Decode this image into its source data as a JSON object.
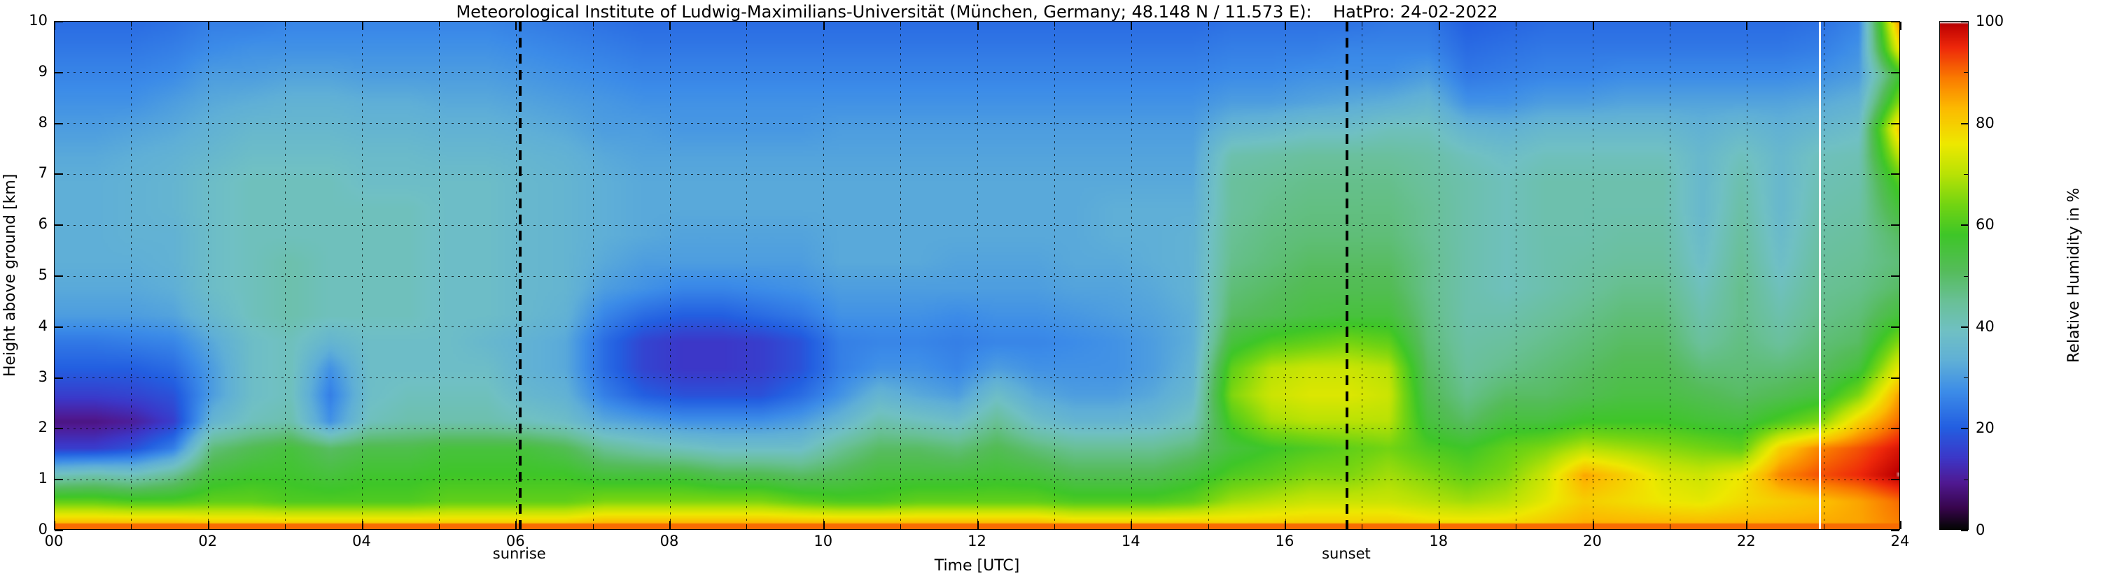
{
  "title": "Meteorological Institute of Ludwig-Maximilians-Universität (München, Germany; 48.148 N / 11.573 E):    HatPro: 24-02-2022",
  "axes": {
    "xlabel": "Time [UTC]",
    "ylabel": "Height above ground [km]",
    "colorbar_label": "Relative Humidity in %",
    "x_tick_labels": [
      "00",
      "02",
      "04",
      "06",
      "08",
      "10",
      "12",
      "14",
      "16",
      "18",
      "20",
      "22",
      "24"
    ],
    "x_tick_hours": [
      0,
      2,
      4,
      6,
      8,
      10,
      12,
      14,
      16,
      18,
      20,
      22,
      24
    ],
    "x_minor_tick_hours": [
      1,
      3,
      5,
      7,
      9,
      11,
      13,
      15,
      17,
      19,
      21,
      23
    ],
    "y_tick_labels": [
      "0",
      "1",
      "2",
      "3",
      "4",
      "5",
      "6",
      "7",
      "8",
      "9",
      "10"
    ],
    "y_tick_km": [
      0,
      1,
      2,
      3,
      4,
      5,
      6,
      7,
      8,
      9,
      10
    ],
    "x_range_h": [
      0,
      24
    ],
    "y_range_km": [
      0,
      10
    ],
    "grid_style": "dashed"
  },
  "colorbar": {
    "tick_labels": [
      "0",
      "20",
      "40",
      "60",
      "80",
      "100"
    ],
    "tick_values": [
      0,
      20,
      40,
      60,
      80,
      100
    ],
    "minor_tick_values": [
      10,
      30,
      50,
      70,
      90
    ],
    "range": [
      0,
      100
    ]
  },
  "annotations": {
    "sunrise": {
      "label": "sunrise",
      "time_utc_h": 6.05
    },
    "sunset": {
      "label": "sunset",
      "time_utc_h": 16.8
    },
    "missing_data_gap_utc_h": 22.95
  },
  "chart_data": {
    "type": "heatmap",
    "title": "HatPro relative humidity time-height cross-section, 24-02-2022",
    "xlabel": "Time [UTC]",
    "ylabel": "Height above ground [km]",
    "zlabel": "Relative Humidity in %",
    "x_range_h": [
      0,
      24
    ],
    "y_range_km": [
      0,
      10
    ],
    "z_range_percent": [
      0,
      100
    ],
    "time_step_h": 0.5,
    "time_bin_center_start_h": 0.25,
    "n_time_bins": 48,
    "height_step_km": 0.5,
    "height_bin_centers_km_bottom_up_start": 0.25,
    "n_height_bins": 20,
    "note": "Each array is one 30-min time column; 20 RH% values from 0 km (first) to 10 km (last). Estimated from the plot colors.",
    "rh_percent_columns_bottom_up": [
      [
        88,
        62,
        40,
        15,
        8,
        15,
        20,
        24,
        30,
        32,
        33,
        33,
        33,
        33,
        32,
        30,
        28,
        26,
        24,
        22
      ],
      [
        88,
        62,
        42,
        15,
        8,
        15,
        20,
        24,
        30,
        32,
        33,
        33,
        33,
        33,
        32,
        30,
        28,
        26,
        24,
        22
      ],
      [
        88,
        60,
        40,
        18,
        10,
        16,
        20,
        25,
        30,
        32,
        33,
        34,
        34,
        34,
        33,
        31,
        28,
        26,
        24,
        22
      ],
      [
        88,
        60,
        45,
        25,
        15,
        18,
        22,
        26,
        31,
        33,
        34,
        34,
        35,
        35,
        34,
        32,
        30,
        27,
        25,
        23
      ],
      [
        85,
        62,
        55,
        48,
        35,
        30,
        30,
        32,
        36,
        38,
        38,
        38,
        38,
        38,
        36,
        34,
        32,
        30,
        27,
        25
      ],
      [
        85,
        62,
        57,
        52,
        40,
        38,
        38,
        38,
        40,
        40,
        40,
        40,
        40,
        40,
        38,
        36,
        33,
        30,
        28,
        25
      ],
      [
        85,
        60,
        57,
        55,
        42,
        40,
        40,
        40,
        42,
        42,
        42,
        40,
        40,
        40,
        38,
        36,
        34,
        31,
        28,
        26
      ],
      [
        85,
        60,
        55,
        50,
        28,
        25,
        28,
        35,
        40,
        40,
        40,
        40,
        40,
        40,
        38,
        36,
        34,
        31,
        28,
        26
      ],
      [
        85,
        60,
        57,
        53,
        40,
        38,
        38,
        38,
        40,
        40,
        40,
        40,
        40,
        38,
        37,
        35,
        33,
        30,
        28,
        26
      ],
      [
        85,
        60,
        57,
        53,
        42,
        40,
        38,
        38,
        40,
        40,
        40,
        40,
        40,
        38,
        37,
        35,
        33,
        30,
        28,
        26
      ],
      [
        85,
        62,
        58,
        55,
        42,
        40,
        38,
        38,
        38,
        38,
        38,
        38,
        38,
        38,
        36,
        34,
        32,
        30,
        28,
        26
      ],
      [
        85,
        62,
        58,
        55,
        42,
        40,
        38,
        36,
        38,
        38,
        38,
        38,
        38,
        38,
        36,
        34,
        32,
        30,
        28,
        26
      ],
      [
        85,
        62,
        58,
        55,
        40,
        36,
        34,
        34,
        36,
        36,
        36,
        36,
        36,
        36,
        35,
        33,
        31,
        29,
        27,
        25
      ],
      [
        85,
        62,
        58,
        52,
        38,
        34,
        32,
        32,
        34,
        35,
        35,
        35,
        35,
        35,
        34,
        32,
        30,
        28,
        26,
        24
      ],
      [
        88,
        65,
        55,
        45,
        32,
        25,
        22,
        22,
        26,
        30,
        32,
        33,
        33,
        33,
        32,
        30,
        29,
        27,
        25,
        23
      ],
      [
        88,
        65,
        55,
        42,
        30,
        20,
        16,
        16,
        22,
        28,
        30,
        32,
        32,
        32,
        31,
        30,
        28,
        26,
        24,
        22
      ],
      [
        88,
        65,
        55,
        40,
        28,
        18,
        14,
        14,
        20,
        26,
        30,
        31,
        32,
        32,
        31,
        29,
        28,
        26,
        24,
        22
      ],
      [
        88,
        65,
        52,
        38,
        28,
        18,
        14,
        14,
        20,
        26,
        30,
        31,
        32,
        32,
        31,
        29,
        28,
        26,
        24,
        22
      ],
      [
        88,
        65,
        52,
        38,
        28,
        18,
        15,
        15,
        22,
        27,
        30,
        31,
        32,
        32,
        31,
        29,
        28,
        26,
        24,
        22
      ],
      [
        88,
        62,
        50,
        38,
        30,
        22,
        18,
        18,
        24,
        28,
        30,
        31,
        32,
        32,
        31,
        29,
        28,
        26,
        24,
        22
      ],
      [
        88,
        60,
        52,
        45,
        35,
        28,
        25,
        25,
        28,
        30,
        32,
        32,
        32,
        32,
        31,
        30,
        28,
        26,
        24,
        22
      ],
      [
        88,
        60,
        55,
        50,
        42,
        35,
        28,
        26,
        28,
        30,
        32,
        32,
        32,
        32,
        31,
        30,
        28,
        26,
        24,
        22
      ],
      [
        88,
        62,
        55,
        50,
        40,
        32,
        28,
        26,
        28,
        30,
        32,
        32,
        32,
        32,
        31,
        30,
        28,
        26,
        24,
        22
      ],
      [
        88,
        62,
        55,
        48,
        38,
        30,
        26,
        25,
        27,
        30,
        31,
        32,
        32,
        32,
        31,
        30,
        28,
        26,
        24,
        22
      ],
      [
        88,
        62,
        56,
        52,
        45,
        38,
        30,
        26,
        28,
        30,
        31,
        32,
        32,
        32,
        31,
        30,
        28,
        26,
        24,
        22
      ],
      [
        88,
        62,
        55,
        48,
        38,
        32,
        28,
        26,
        28,
        30,
        31,
        32,
        32,
        32,
        31,
        30,
        28,
        26,
        24,
        22
      ],
      [
        85,
        60,
        52,
        45,
        35,
        30,
        28,
        27,
        29,
        31,
        32,
        32,
        32,
        32,
        31,
        30,
        28,
        26,
        24,
        22
      ],
      [
        85,
        60,
        52,
        45,
        35,
        30,
        28,
        28,
        30,
        31,
        32,
        33,
        33,
        32,
        31,
        30,
        28,
        26,
        24,
        22
      ],
      [
        85,
        60,
        52,
        45,
        36,
        32,
        30,
        30,
        31,
        32,
        33,
        33,
        33,
        32,
        31,
        30,
        28,
        26,
        24,
        22
      ],
      [
        85,
        62,
        55,
        48,
        40,
        36,
        34,
        33,
        33,
        34,
        34,
        34,
        33,
        32,
        31,
        30,
        28,
        26,
        24,
        22
      ],
      [
        82,
        68,
        60,
        55,
        60,
        65,
        62,
        55,
        50,
        48,
        46,
        45,
        44,
        44,
        42,
        35,
        30,
        27,
        25,
        23
      ],
      [
        82,
        70,
        62,
        58,
        68,
        72,
        70,
        60,
        52,
        50,
        48,
        47,
        46,
        45,
        43,
        36,
        30,
        27,
        25,
        23
      ],
      [
        82,
        72,
        65,
        60,
        70,
        74,
        72,
        62,
        54,
        52,
        50,
        48,
        47,
        46,
        44,
        38,
        31,
        28,
        25,
        23
      ],
      [
        82,
        72,
        65,
        62,
        70,
        74,
        72,
        64,
        55,
        52,
        50,
        48,
        47,
        46,
        44,
        38,
        32,
        28,
        26,
        23
      ],
      [
        82,
        72,
        68,
        64,
        70,
        72,
        70,
        62,
        55,
        52,
        50,
        48,
        47,
        46,
        44,
        40,
        33,
        28,
        26,
        24
      ],
      [
        80,
        70,
        65,
        60,
        55,
        52,
        50,
        48,
        47,
        46,
        46,
        45,
        45,
        44,
        43,
        40,
        35,
        30,
        26,
        24
      ],
      [
        80,
        68,
        62,
        58,
        50,
        46,
        44,
        43,
        42,
        42,
        42,
        42,
        42,
        42,
        40,
        35,
        28,
        24,
        22,
        20
      ],
      [
        80,
        70,
        65,
        62,
        55,
        50,
        46,
        44,
        42,
        40,
        40,
        40,
        40,
        40,
        38,
        34,
        28,
        25,
        23,
        21
      ],
      [
        82,
        75,
        72,
        65,
        55,
        50,
        48,
        46,
        44,
        42,
        42,
        42,
        42,
        42,
        40,
        36,
        30,
        26,
        24,
        22
      ],
      [
        85,
        80,
        85,
        70,
        58,
        52,
        50,
        48,
        46,
        44,
        43,
        42,
        42,
        42,
        40,
        36,
        30,
        26,
        24,
        22
      ],
      [
        85,
        78,
        80,
        68,
        58,
        54,
        52,
        50,
        48,
        46,
        44,
        43,
        42,
        42,
        40,
        36,
        31,
        27,
        24,
        22
      ],
      [
        85,
        76,
        74,
        66,
        58,
        54,
        52,
        50,
        48,
        46,
        44,
        43,
        42,
        42,
        40,
        36,
        31,
        27,
        24,
        22
      ],
      [
        85,
        75,
        72,
        64,
        56,
        52,
        48,
        44,
        42,
        40,
        38,
        37,
        36,
        36,
        36,
        34,
        31,
        27,
        24,
        22
      ],
      [
        85,
        78,
        76,
        62,
        55,
        50,
        48,
        47,
        46,
        46,
        45,
        44,
        43,
        42,
        40,
        36,
        31,
        27,
        24,
        22
      ],
      [
        85,
        80,
        88,
        80,
        60,
        52,
        48,
        44,
        42,
        40,
        38,
        37,
        36,
        36,
        36,
        34,
        31,
        27,
        24,
        22
      ],
      [
        85,
        82,
        92,
        88,
        65,
        55,
        50,
        48,
        46,
        45,
        44,
        43,
        42,
        41,
        40,
        36,
        32,
        28,
        25,
        23
      ],
      [
        85,
        85,
        95,
        92,
        80,
        65,
        55,
        50,
        48,
        46,
        45,
        44,
        43,
        42,
        41,
        38,
        34,
        30,
        28,
        26
      ],
      [
        88,
        90,
        100,
        97,
        90,
        85,
        75,
        65,
        55,
        50,
        48,
        50,
        55,
        60,
        70,
        80,
        65,
        55,
        75,
        85
      ]
    ],
    "colormap_stops": [
      [
        0,
        [
          5,
          5,
          5
        ]
      ],
      [
        4,
        [
          55,
          5,
          75
        ]
      ],
      [
        9,
        [
          80,
          25,
          145
        ]
      ],
      [
        14,
        [
          60,
          55,
          200
        ]
      ],
      [
        20,
        [
          35,
          95,
          225
        ]
      ],
      [
        27,
        [
          60,
          140,
          232
        ]
      ],
      [
        33,
        [
          95,
          175,
          215
        ]
      ],
      [
        39,
        [
          112,
          192,
          196
        ]
      ],
      [
        45,
        [
          105,
          192,
          150
        ]
      ],
      [
        51,
        [
          85,
          188,
          90
        ]
      ],
      [
        58,
        [
          62,
          198,
          40
        ]
      ],
      [
        64,
        [
          115,
          212,
          18
        ]
      ],
      [
        70,
        [
          185,
          226,
          5
        ]
      ],
      [
        76,
        [
          238,
          232,
          0
        ]
      ],
      [
        83,
        [
          252,
          186,
          0
        ]
      ],
      [
        89,
        [
          250,
          122,
          0
        ]
      ],
      [
        95,
        [
          238,
          40,
          10
        ]
      ],
      [
        99,
        [
          196,
          6,
          3
        ]
      ],
      [
        99.6,
        [
          185,
          0,
          0
        ]
      ],
      [
        100,
        [
          218,
          218,
          218
        ]
      ]
    ],
    "legend_position": "right-colorbar",
    "grid": "dashed on, every 1 h and every 1 km"
  }
}
